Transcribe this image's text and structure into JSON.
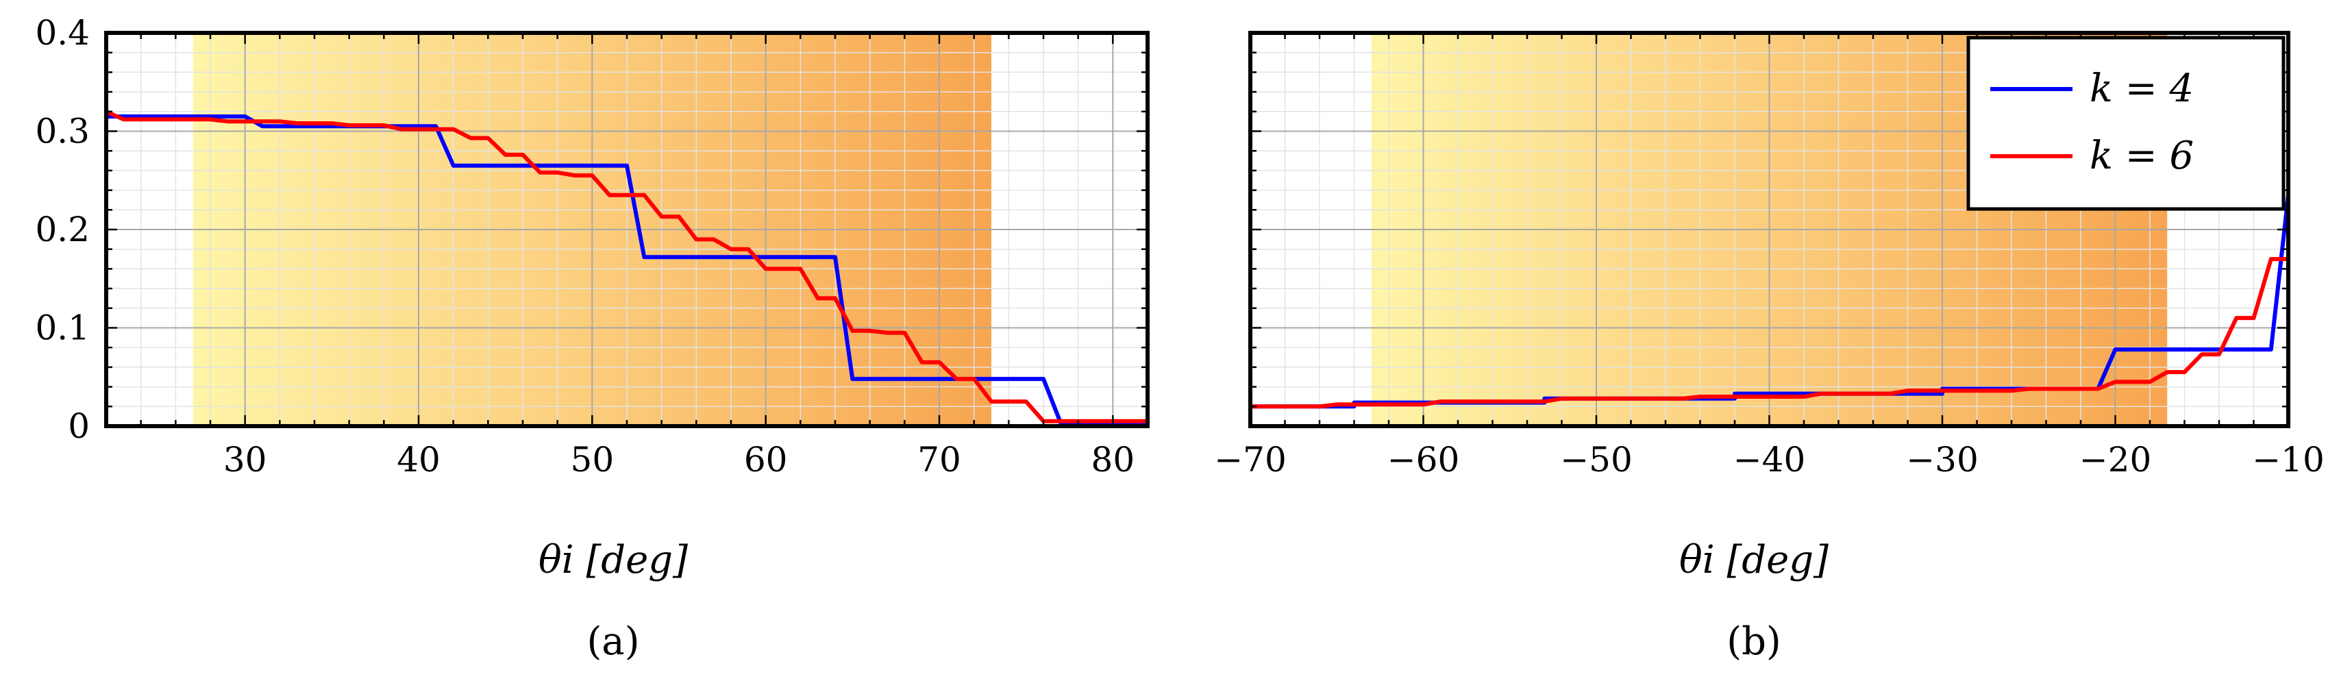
{
  "chart_data": [
    {
      "type": "line",
      "panel_label": "(a)",
      "xlabel": "θi [deg]",
      "ylabel": "",
      "xlim": [
        22,
        82
      ],
      "ylim": [
        0,
        0.4
      ],
      "xticks": [
        30,
        40,
        50,
        60,
        70,
        80
      ],
      "yticks": [
        0,
        0.1,
        0.2,
        0.3,
        0.4
      ],
      "xtick_labels": [
        "30",
        "40",
        "50",
        "60",
        "70",
        "80"
      ],
      "ytick_labels": [
        "0",
        "0.1",
        "0.2",
        "0.3",
        "0.4"
      ],
      "grid": true,
      "shaded_region": {
        "x_start": 27,
        "x_end": 73,
        "gradient": [
          "#FFF5A8",
          "#F7A550"
        ]
      },
      "series": [
        {
          "name": "k = 4",
          "color": "#0000FF",
          "x": [
            22,
            30,
            31,
            41,
            42,
            52,
            53,
            64,
            65,
            76,
            77,
            82
          ],
          "y": [
            0.315,
            0.315,
            0.305,
            0.305,
            0.265,
            0.265,
            0.172,
            0.172,
            0.048,
            0.048,
            0.003,
            0.003
          ]
        },
        {
          "name": "k = 6",
          "color": "#FF0000",
          "x": [
            22,
            23,
            28,
            29,
            32,
            33,
            35,
            36,
            38,
            39,
            42,
            43,
            44,
            45,
            46,
            47,
            48,
            49,
            50,
            51,
            53,
            54,
            55,
            56,
            57,
            58,
            59,
            60,
            62,
            63,
            64,
            65,
            66,
            67,
            68,
            69,
            70,
            71,
            72,
            73,
            75,
            76,
            82
          ],
          "y": [
            0.32,
            0.312,
            0.312,
            0.31,
            0.31,
            0.308,
            0.308,
            0.306,
            0.306,
            0.302,
            0.302,
            0.293,
            0.293,
            0.276,
            0.276,
            0.258,
            0.258,
            0.255,
            0.255,
            0.235,
            0.235,
            0.213,
            0.213,
            0.19,
            0.19,
            0.18,
            0.18,
            0.16,
            0.16,
            0.13,
            0.13,
            0.097,
            0.097,
            0.095,
            0.095,
            0.065,
            0.065,
            0.048,
            0.048,
            0.025,
            0.025,
            0.005,
            0.005
          ]
        }
      ]
    },
    {
      "type": "line",
      "panel_label": "(b)",
      "xlabel": "θi [deg]",
      "ylabel": "",
      "xlim": [
        -70,
        -10
      ],
      "ylim": [
        0,
        0.4
      ],
      "xticks": [
        -70,
        -60,
        -50,
        -40,
        -30,
        -20,
        -10
      ],
      "yticks": [
        0,
        0.1,
        0.2,
        0.3,
        0.4
      ],
      "xtick_labels": [
        "−70",
        "−60",
        "−50",
        "−40",
        "−30",
        "−20",
        "−10"
      ],
      "grid": true,
      "legend_position": "top-right",
      "shaded_region": {
        "x_start": -63,
        "x_end": -17,
        "gradient": [
          "#FFF5A8",
          "#F7A550"
        ]
      },
      "series": [
        {
          "name": "k = 4",
          "color": "#0000FF",
          "x": [
            -70,
            -64,
            -64,
            -53,
            -53,
            -42,
            -42,
            -30,
            -30,
            -21,
            -20,
            -11,
            -10
          ],
          "y": [
            0.02,
            0.02,
            0.024,
            0.024,
            0.028,
            0.028,
            0.033,
            0.033,
            0.038,
            0.038,
            0.078,
            0.078,
            0.235
          ]
        },
        {
          "name": "k = 6",
          "color": "#FF0000",
          "x": [
            -70,
            -66,
            -65,
            -60,
            -59,
            -53,
            -52,
            -45,
            -44,
            -38,
            -37,
            -33,
            -32,
            -26,
            -25,
            -21,
            -20,
            -18,
            -17,
            -16,
            -15,
            -14,
            -13,
            -12,
            -11,
            -10
          ],
          "y": [
            0.02,
            0.02,
            0.022,
            0.022,
            0.025,
            0.025,
            0.028,
            0.028,
            0.03,
            0.03,
            0.033,
            0.033,
            0.036,
            0.036,
            0.038,
            0.038,
            0.045,
            0.045,
            0.055,
            0.055,
            0.073,
            0.073,
            0.11,
            0.11,
            0.17,
            0.17
          ]
        }
      ]
    }
  ]
}
